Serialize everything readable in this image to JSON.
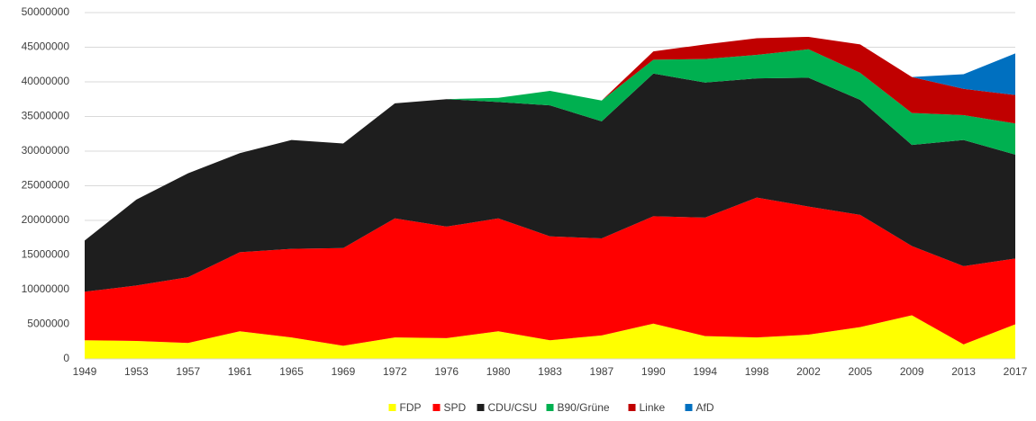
{
  "chart_data": {
    "type": "stacked-area",
    "categories": [
      "1949",
      "1953",
      "1957",
      "1961",
      "1965",
      "1969",
      "1972",
      "1976",
      "1980",
      "1983",
      "1987",
      "1990",
      "1994",
      "1998",
      "2002",
      "2005",
      "2009",
      "2013",
      "2017"
    ],
    "series": [
      {
        "name": "FDP",
        "color": "#ffff00",
        "values": [
          2700000,
          2600000,
          2300000,
          4000000,
          3100000,
          1900000,
          3100000,
          3000000,
          4000000,
          2700000,
          3400000,
          5100000,
          3300000,
          3100000,
          3500000,
          4600000,
          6300000,
          2100000,
          5000000
        ]
      },
      {
        "name": "SPD",
        "color": "#ff0000",
        "values": [
          7000000,
          8000000,
          9500000,
          11400000,
          12800000,
          14100000,
          17200000,
          16100000,
          16300000,
          15000000,
          14000000,
          15500000,
          17100000,
          20200000,
          18500000,
          16200000,
          10000000,
          11300000,
          9500000
        ]
      },
      {
        "name": "CDU/CSU",
        "color": "#1e1e1e",
        "values": [
          7400000,
          12400000,
          15000000,
          14300000,
          15700000,
          15100000,
          16600000,
          18400000,
          16800000,
          18900000,
          16900000,
          20600000,
          19500000,
          17200000,
          18600000,
          16600000,
          14600000,
          18200000,
          15000000
        ]
      },
      {
        "name": "B90/Grüne",
        "color": "#00b050",
        "values": [
          0,
          0,
          0,
          0,
          0,
          0,
          0,
          0,
          600000,
          2100000,
          3000000,
          2000000,
          3400000,
          3400000,
          4100000,
          3900000,
          4600000,
          3600000,
          4500000
        ]
      },
      {
        "name": "Linke",
        "color": "#c00000",
        "values": [
          0,
          0,
          0,
          0,
          0,
          0,
          0,
          0,
          0,
          0,
          0,
          1200000,
          2100000,
          2400000,
          1800000,
          4100000,
          5200000,
          3800000,
          4100000
        ]
      },
      {
        "name": "AfD",
        "color": "#0070c0",
        "values": [
          0,
          0,
          0,
          0,
          0,
          0,
          0,
          0,
          0,
          0,
          0,
          0,
          0,
          0,
          0,
          0,
          0,
          2100000,
          6000000
        ]
      }
    ],
    "ylim": [
      0,
      50000000
    ],
    "yticks": [
      0,
      5000000,
      10000000,
      15000000,
      20000000,
      25000000,
      30000000,
      35000000,
      40000000,
      45000000,
      50000000
    ],
    "grid": true,
    "legend": "bottom"
  }
}
